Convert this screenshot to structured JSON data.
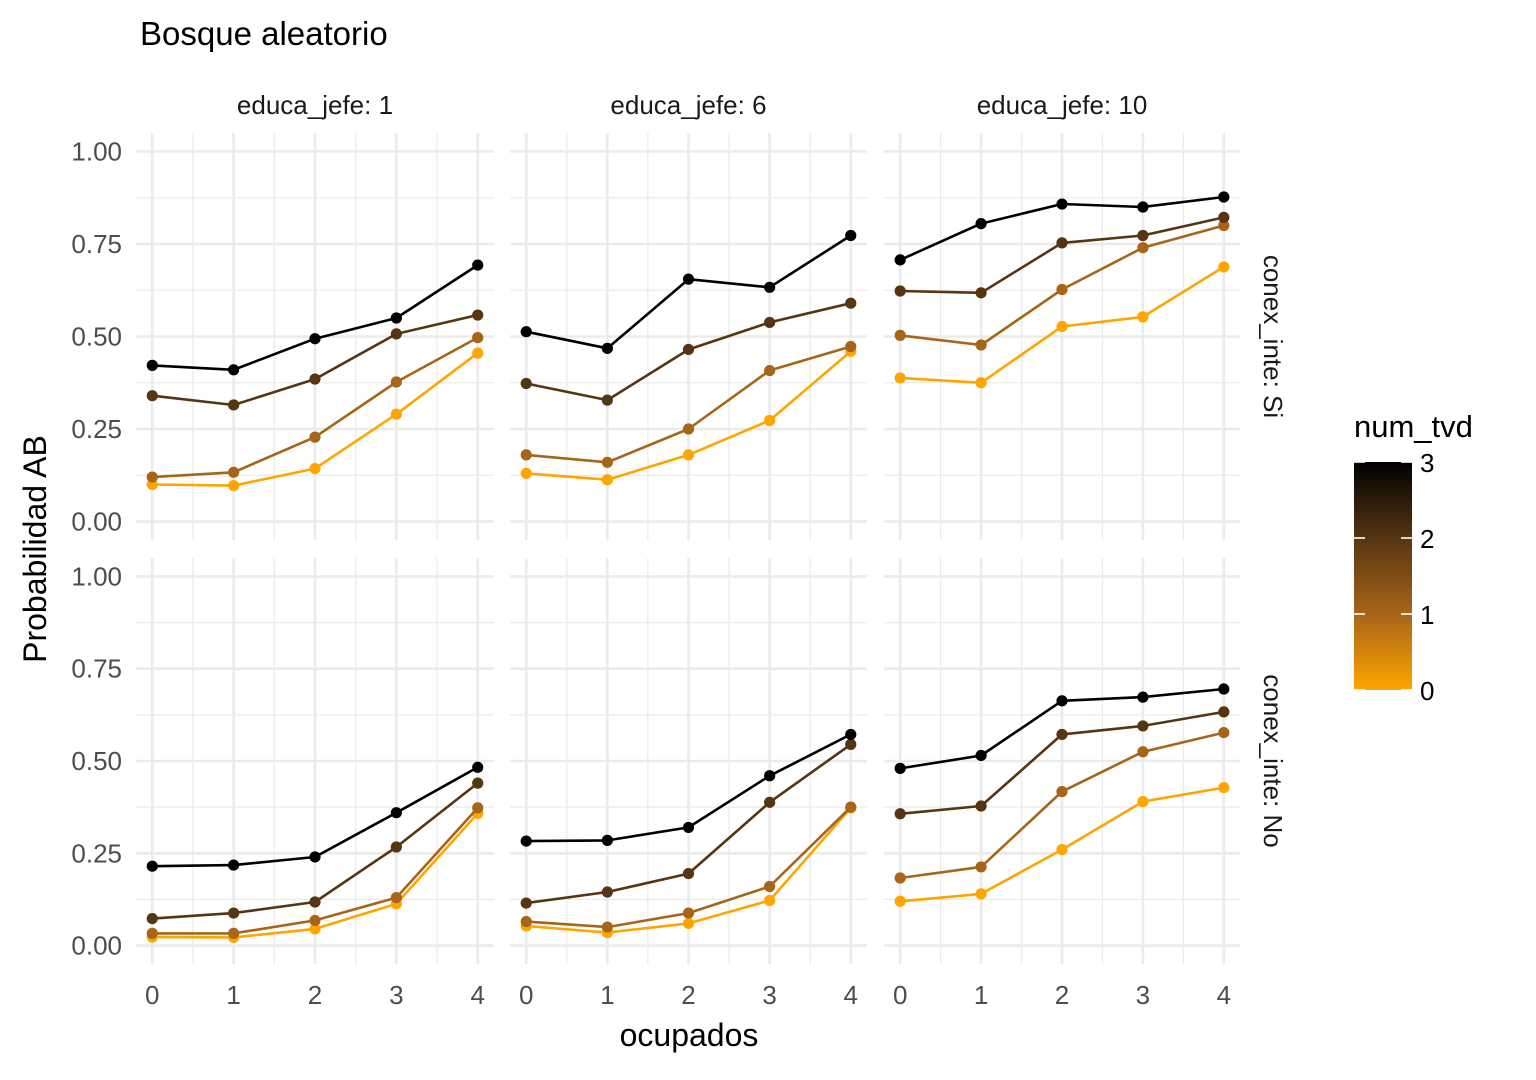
{
  "chart_data": {
    "type": "line",
    "title": "Bosque aleatorio",
    "xlabel": "ocupados",
    "ylabel": "Probabilidad AB",
    "x_ticks": [
      "0",
      "1",
      "2",
      "3",
      "4"
    ],
    "y_ticks": [
      "0.00",
      "0.25",
      "0.50",
      "0.75",
      "1.00"
    ],
    "xlim": [
      -0.2,
      4.2
    ],
    "ylim": [
      -0.05,
      1.05
    ],
    "grid": true,
    "columns": [
      {
        "label": "educa_jefe: 1"
      },
      {
        "label": "educa_jefe: 6"
      },
      {
        "label": "educa_jefe: 10"
      }
    ],
    "rows": [
      {
        "label": "conex_inte: Si"
      },
      {
        "label": "conex_inte: No"
      }
    ],
    "legend": {
      "title": "num_tvd",
      "placement": "right",
      "ticks": [
        "0",
        "1",
        "2",
        "3"
      ],
      "range": [
        0,
        3
      ],
      "color_low": "#ffa500",
      "color_high": "#000000"
    },
    "x": [
      0,
      1,
      2,
      3,
      4
    ],
    "panels": [
      {
        "row": 0,
        "col": 0,
        "series": [
          {
            "num_tvd": 0,
            "values": [
              0.1,
              0.097,
              0.143,
              0.29,
              0.455
            ]
          },
          {
            "num_tvd": 1,
            "values": [
              0.12,
              0.133,
              0.228,
              0.377,
              0.497
            ]
          },
          {
            "num_tvd": 2,
            "values": [
              0.34,
              0.315,
              0.385,
              0.507,
              0.558
            ]
          },
          {
            "num_tvd": 3,
            "values": [
              0.422,
              0.41,
              0.494,
              0.55,
              0.693
            ]
          }
        ]
      },
      {
        "row": 0,
        "col": 1,
        "series": [
          {
            "num_tvd": 0,
            "values": [
              0.13,
              0.113,
              0.18,
              0.273,
              0.46
            ]
          },
          {
            "num_tvd": 1,
            "values": [
              0.18,
              0.16,
              0.25,
              0.408,
              0.473
            ]
          },
          {
            "num_tvd": 2,
            "values": [
              0.373,
              0.328,
              0.465,
              0.538,
              0.59
            ]
          },
          {
            "num_tvd": 3,
            "values": [
              0.513,
              0.468,
              0.655,
              0.633,
              0.773
            ]
          }
        ]
      },
      {
        "row": 0,
        "col": 2,
        "series": [
          {
            "num_tvd": 0,
            "values": [
              0.388,
              0.375,
              0.527,
              0.553,
              0.688
            ]
          },
          {
            "num_tvd": 1,
            "values": [
              0.503,
              0.477,
              0.627,
              0.74,
              0.8
            ]
          },
          {
            "num_tvd": 2,
            "values": [
              0.623,
              0.618,
              0.753,
              0.773,
              0.822
            ]
          },
          {
            "num_tvd": 3,
            "values": [
              0.707,
              0.805,
              0.858,
              0.85,
              0.877
            ]
          }
        ]
      },
      {
        "row": 1,
        "col": 0,
        "series": [
          {
            "num_tvd": 0,
            "values": [
              0.023,
              0.022,
              0.045,
              0.113,
              0.358
            ]
          },
          {
            "num_tvd": 1,
            "values": [
              0.033,
              0.033,
              0.068,
              0.13,
              0.373
            ]
          },
          {
            "num_tvd": 2,
            "values": [
              0.073,
              0.088,
              0.118,
              0.267,
              0.44
            ]
          },
          {
            "num_tvd": 3,
            "values": [
              0.215,
              0.218,
              0.24,
              0.36,
              0.483
            ]
          }
        ]
      },
      {
        "row": 1,
        "col": 1,
        "series": [
          {
            "num_tvd": 0,
            "values": [
              0.053,
              0.035,
              0.06,
              0.122,
              0.373
            ]
          },
          {
            "num_tvd": 1,
            "values": [
              0.065,
              0.05,
              0.088,
              0.16,
              0.375
            ]
          },
          {
            "num_tvd": 2,
            "values": [
              0.115,
              0.145,
              0.195,
              0.388,
              0.545
            ]
          },
          {
            "num_tvd": 3,
            "values": [
              0.283,
              0.285,
              0.32,
              0.46,
              0.572
            ]
          }
        ]
      },
      {
        "row": 1,
        "col": 2,
        "series": [
          {
            "num_tvd": 0,
            "values": [
              0.12,
              0.14,
              0.26,
              0.39,
              0.428
            ]
          },
          {
            "num_tvd": 1,
            "values": [
              0.183,
              0.213,
              0.417,
              0.525,
              0.577
            ]
          },
          {
            "num_tvd": 2,
            "values": [
              0.357,
              0.378,
              0.572,
              0.595,
              0.633
            ]
          },
          {
            "num_tvd": 3,
            "values": [
              0.48,
              0.515,
              0.663,
              0.673,
              0.695
            ]
          }
        ]
      }
    ]
  }
}
